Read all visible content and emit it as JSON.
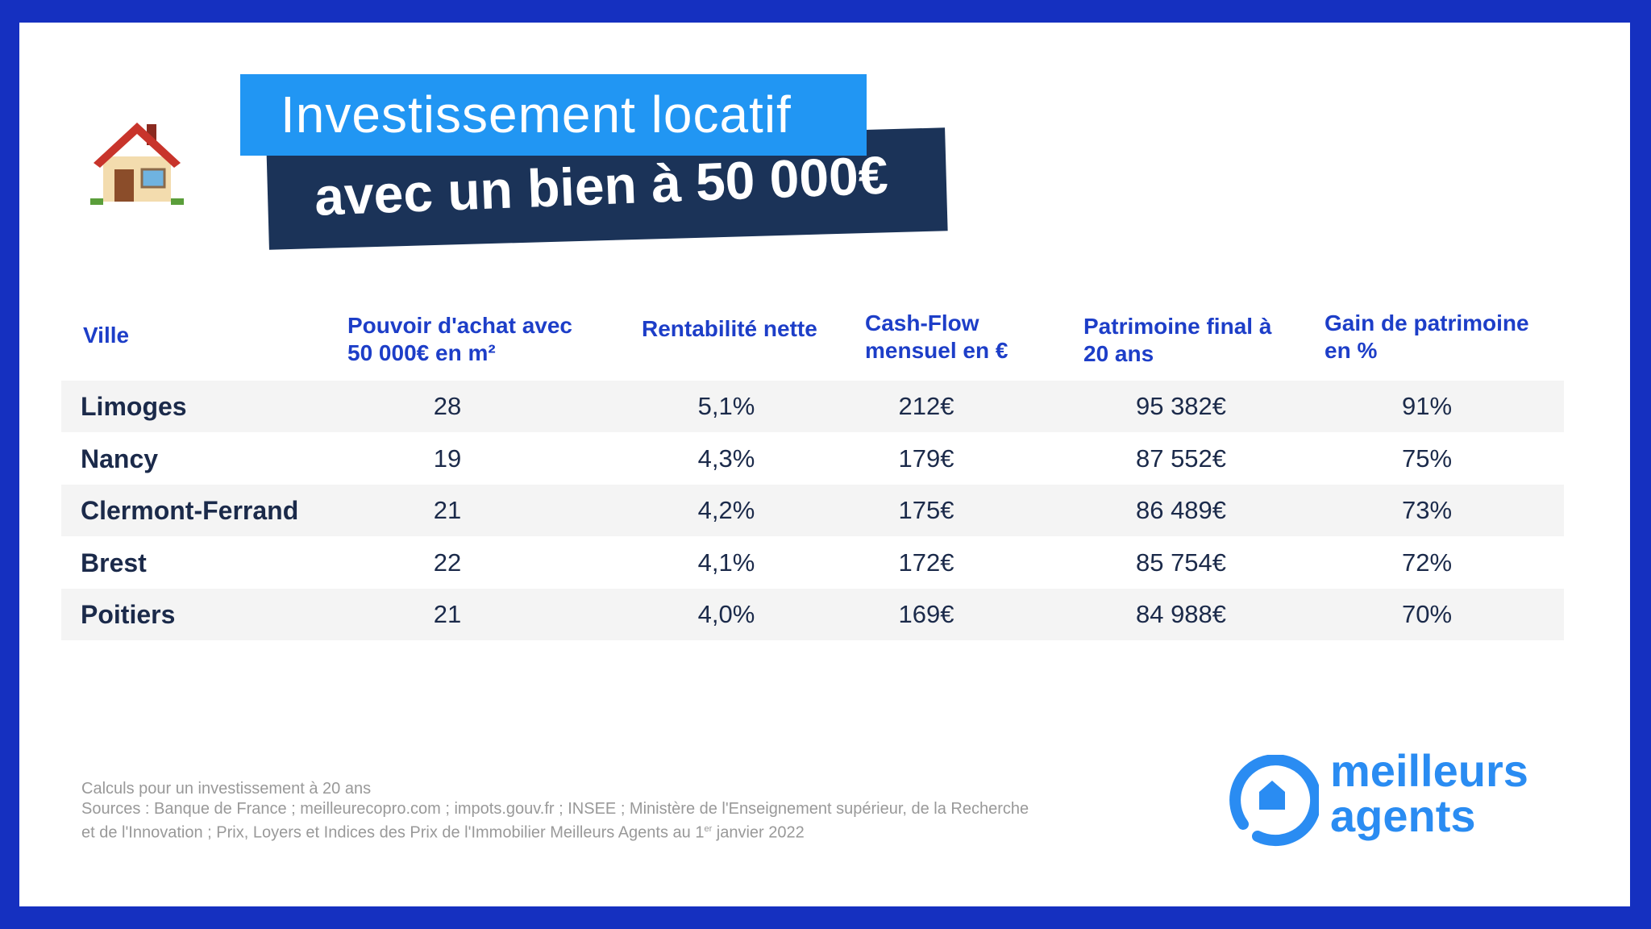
{
  "title": {
    "line1": "Investissement locatif",
    "line2": "avec un bien à 50 000€"
  },
  "table": {
    "headers": [
      "Ville",
      "Pouvoir d'achat avec 50 000€ en m²",
      "Rentabilité nette",
      "Cash-Flow mensuel en €",
      "Patrimoine final à 20 ans",
      "Gain de patrimoine en %"
    ],
    "header_lines": [
      [
        "Ville"
      ],
      [
        "Pouvoir d'achat avec",
        "50 000€ en m²"
      ],
      [
        "Rentabilité nette"
      ],
      [
        "Cash-Flow",
        "mensuel en €"
      ],
      [
        "Patrimoine final à",
        "20 ans"
      ],
      [
        "Gain de patrimoine",
        "en %"
      ]
    ],
    "rows": [
      [
        "Limoges",
        "28",
        "5,1%",
        "212€",
        "95 382€",
        "91%"
      ],
      [
        "Nancy",
        "19",
        "4,3%",
        "179€",
        "87 552€",
        "75%"
      ],
      [
        "Clermont-Ferrand",
        "21",
        "4,2%",
        "175€",
        "86 489€",
        "73%"
      ],
      [
        "Brest",
        "22",
        "4,1%",
        "172€",
        "85 754€",
        "72%"
      ],
      [
        "Poitiers",
        "21",
        "4,0%",
        "169€",
        "84 988€",
        "70%"
      ]
    ]
  },
  "footer": {
    "line1": "Calculs pour un investissement à 20 ans",
    "line2": "Sources : Banque de France ; meilleurecopro.com ; impots.gouv.fr ; INSEE ; Ministère de l'Enseignement supérieur, de la Recherche",
    "line3a": "et de l'Innovation ; Prix, Loyers et Indices des Prix de l'Immobilier Meilleurs Agents au 1",
    "line3sup": "er",
    "line3b": " janvier 2022"
  },
  "logo": {
    "line1": "meilleurs",
    "line2": "agents"
  },
  "colors": {
    "frame": "#1530c0",
    "title_bg": "#2196f3",
    "banner_bg": "#1b3358",
    "header_text": "#1d3ec8",
    "logo": "#2a8cf2"
  }
}
